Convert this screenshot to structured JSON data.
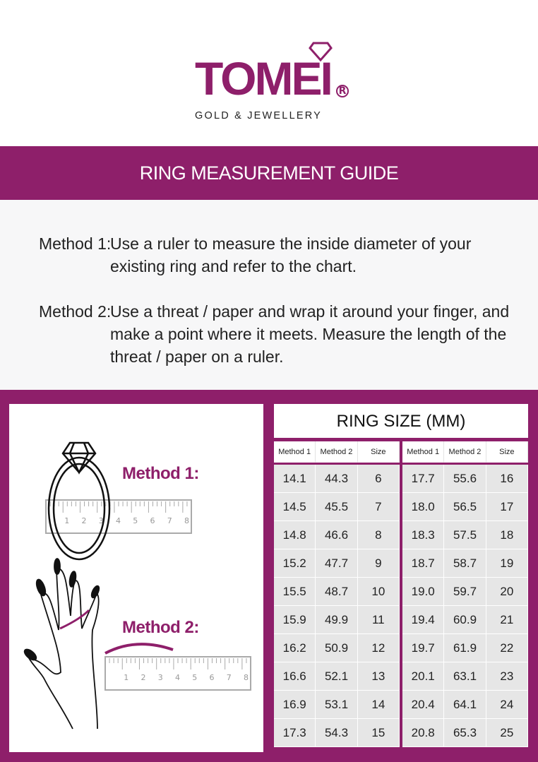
{
  "brand": {
    "name": "TOMEI",
    "registered": "R",
    "tagline": "GOLD & JEWELLERY",
    "color": "#8e1f6a"
  },
  "banner": {
    "title": "RING MEASUREMENT GUIDE"
  },
  "methods": [
    {
      "label": "Method 1:",
      "text": "Use a ruler to measure the inside diameter of your existing ring and refer to the chart."
    },
    {
      "label": "Method 2:",
      "text": "Use a threat / paper and wrap it around your finger, and make a point where it meets. Measure the length of the threat / paper on a ruler."
    }
  ],
  "illustrations": {
    "method1_label": "Method 1:",
    "method2_label": "Method 2:",
    "ruler_numbers": [
      "1",
      "2",
      "3",
      "4",
      "5",
      "6",
      "7",
      "8"
    ]
  },
  "table": {
    "title": "RING SIZE (MM)",
    "headers": [
      "Method 1",
      "Method 2",
      "Size"
    ],
    "left": [
      [
        "14.1",
        "44.3",
        "6"
      ],
      [
        "14.5",
        "45.5",
        "7"
      ],
      [
        "14.8",
        "46.6",
        "8"
      ],
      [
        "15.2",
        "47.7",
        "9"
      ],
      [
        "15.5",
        "48.7",
        "10"
      ],
      [
        "15.9",
        "49.9",
        "11"
      ],
      [
        "16.2",
        "50.9",
        "12"
      ],
      [
        "16.6",
        "52.1",
        "13"
      ],
      [
        "16.9",
        "53.1",
        "14"
      ],
      [
        "17.3",
        "54.3",
        "15"
      ]
    ],
    "right": [
      [
        "17.7",
        "55.6",
        "16"
      ],
      [
        "18.0",
        "56.5",
        "17"
      ],
      [
        "18.3",
        "57.5",
        "18"
      ],
      [
        "18.7",
        "58.7",
        "19"
      ],
      [
        "19.0",
        "59.7",
        "20"
      ],
      [
        "19.4",
        "60.9",
        "21"
      ],
      [
        "19.7",
        "61.9",
        "22"
      ],
      [
        "20.1",
        "63.1",
        "23"
      ],
      [
        "20.4",
        "64.1",
        "24"
      ],
      [
        "20.8",
        "65.3",
        "25"
      ]
    ]
  }
}
